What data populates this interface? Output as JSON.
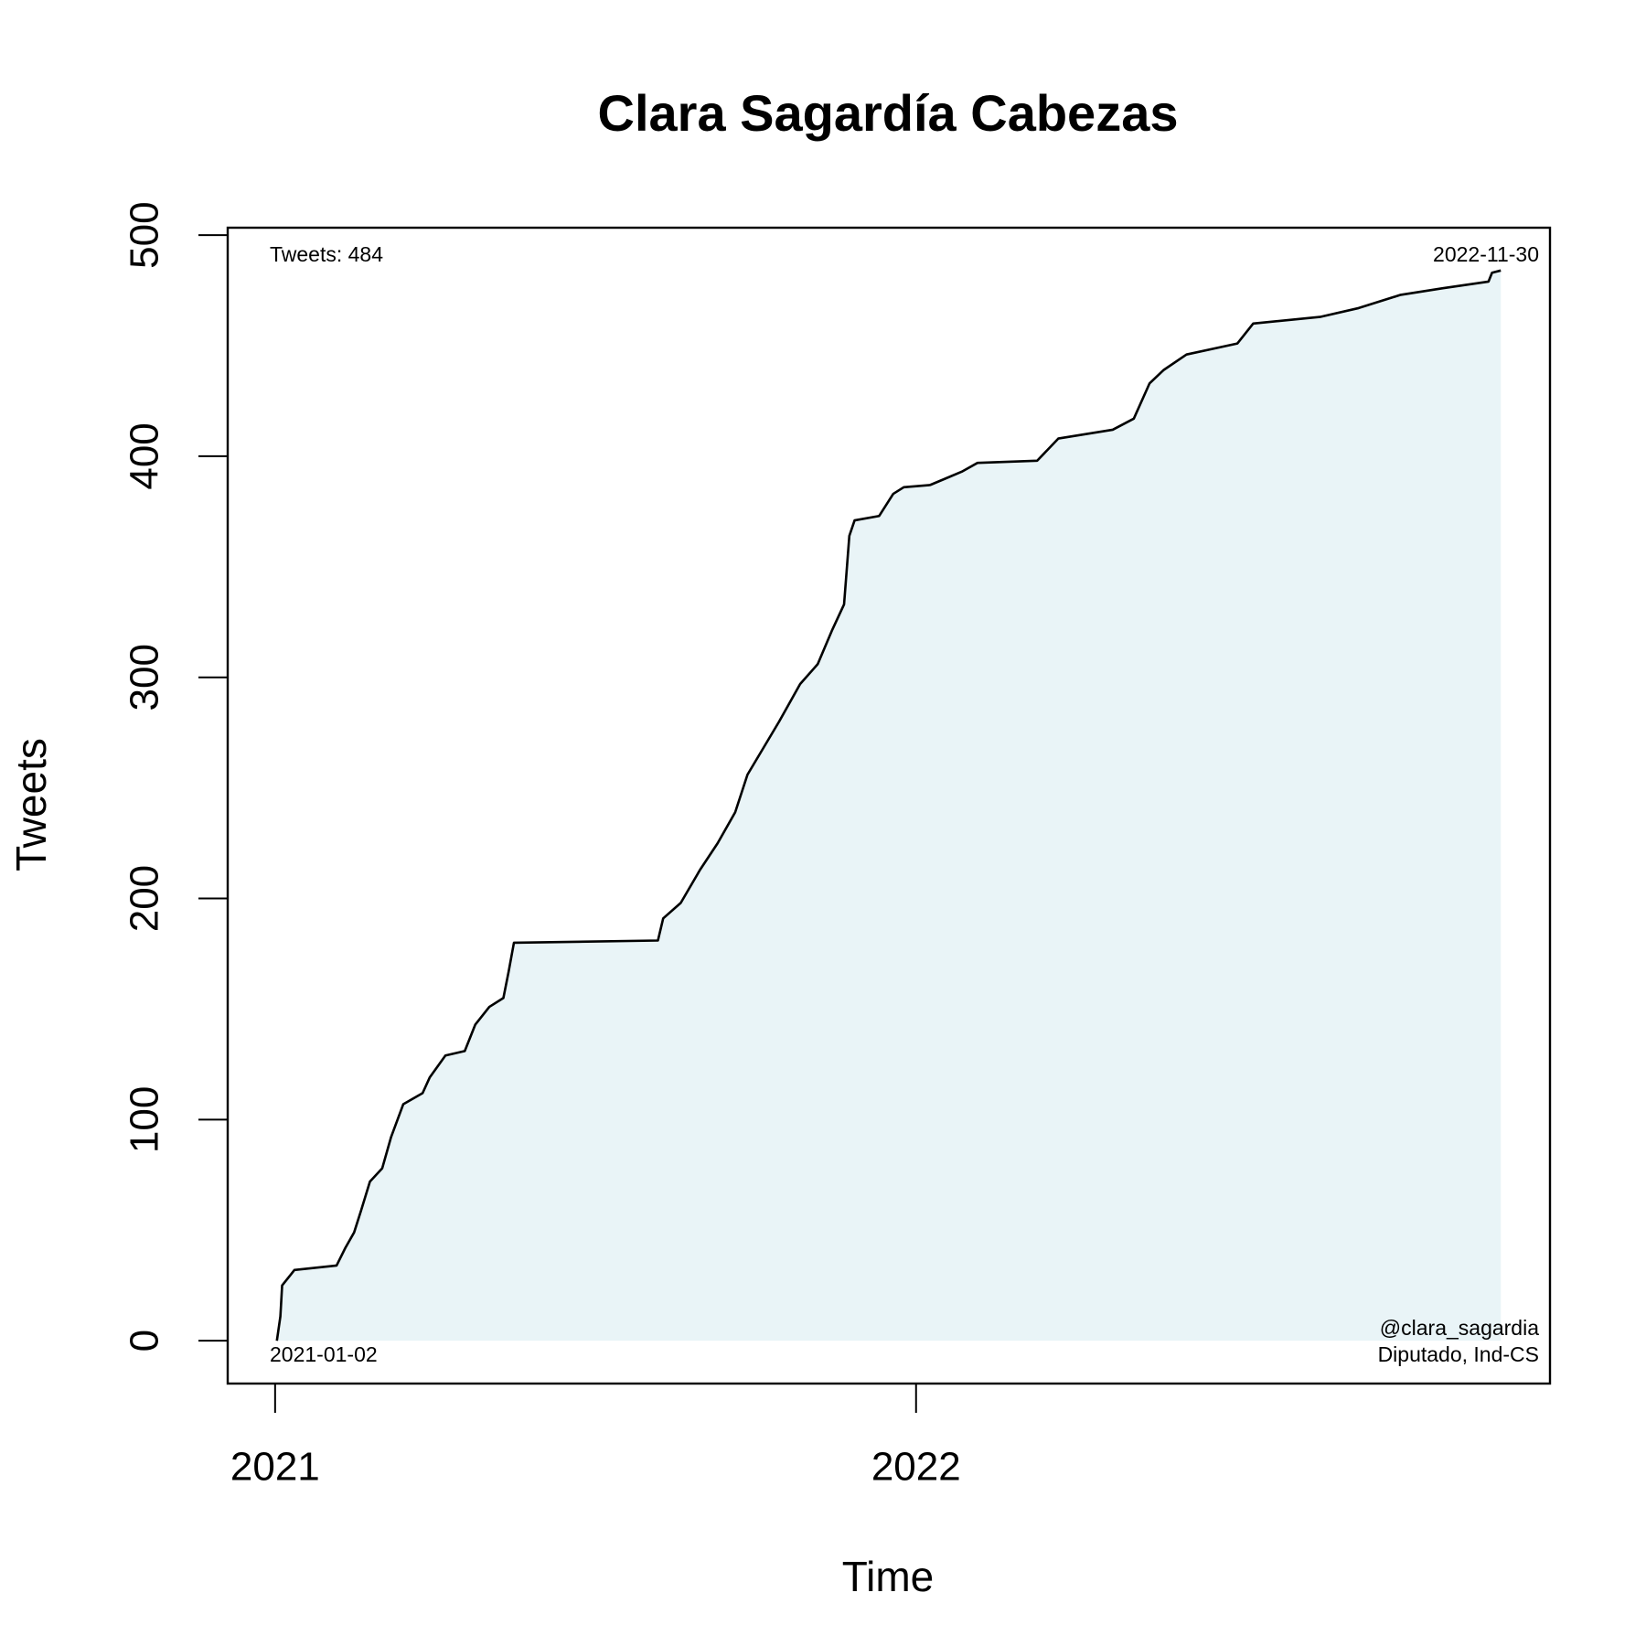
{
  "chart_data": {
    "type": "line",
    "title": "Clara Sagardía Cabezas",
    "x_label": "Time",
    "y_label": "Tweets",
    "x": [
      "2021-01-02",
      "2021-01-04",
      "2021-01-05",
      "2021-01-10",
      "2021-01-12",
      "2021-02-05",
      "2021-02-10",
      "2021-02-15",
      "2021-02-19",
      "2021-02-24",
      "2021-03-03",
      "2021-03-08",
      "2021-03-15",
      "2021-03-26",
      "2021-03-30",
      "2021-04-08",
      "2021-04-19",
      "2021-04-25",
      "2021-05-03",
      "2021-05-11",
      "2021-05-14",
      "2021-05-17",
      "2021-08-07",
      "2021-08-10",
      "2021-08-20",
      "2021-08-31",
      "2021-09-10",
      "2021-09-20",
      "2021-09-27",
      "2021-10-06",
      "2021-10-15",
      "2021-10-27",
      "2021-11-06",
      "2021-11-14",
      "2021-11-21",
      "2021-11-24",
      "2021-11-27",
      "2021-12-11",
      "2021-12-19",
      "2021-12-25",
      "2022-01-09",
      "2022-01-18",
      "2022-01-27",
      "2022-02-05",
      "2022-03-11",
      "2022-03-23",
      "2022-04-23",
      "2022-05-05",
      "2022-05-14",
      "2022-05-22",
      "2022-06-04",
      "2022-07-03",
      "2022-07-12",
      "2022-08-19",
      "2022-09-10",
      "2022-10-04",
      "2022-10-28",
      "2022-11-23",
      "2022-11-25",
      "2022-11-30"
    ],
    "series": [
      {
        "name": "Tweets",
        "color": "#000000",
        "fill": "#e9f4f7",
        "values": [
          0,
          11,
          25,
          30,
          32,
          34,
          42,
          49,
          59,
          72,
          78,
          92,
          107,
          112,
          119,
          129,
          131,
          143,
          151,
          155,
          167,
          180,
          181,
          191,
          198,
          213,
          225,
          239,
          256,
          268,
          280,
          297,
          306,
          321,
          333,
          364,
          371,
          373,
          383,
          386,
          387,
          390,
          393,
          397,
          398,
          408,
          412,
          417,
          433,
          439,
          446,
          451,
          460,
          463,
          467,
          473,
          476,
          479,
          483,
          484
        ]
      }
    ],
    "xlim": [
      "2020-12-05",
      "2022-12-28"
    ],
    "xticks": [
      {
        "value": "2021-01-01",
        "label": "2021"
      },
      {
        "value": "2022-01-01",
        "label": "2022"
      }
    ],
    "ylim": [
      -19.36,
      503.36
    ],
    "yticks": [
      0,
      100,
      200,
      300,
      400,
      500
    ],
    "annotations": [
      "Tweets: 484",
      "2022-11-30",
      "2021-01-02",
      "@clara_sagardia",
      "Diputado, Ind-CS"
    ]
  }
}
